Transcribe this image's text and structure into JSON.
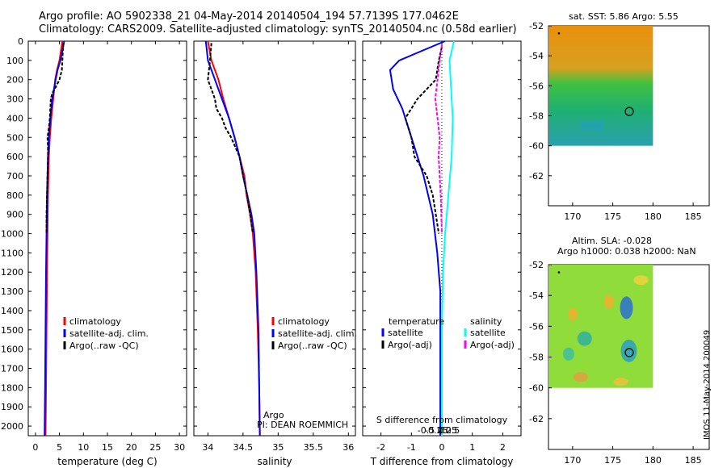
{
  "title_line1": "Argo profile: AO 5902338_21 04-May-2014 20140504_194 57.7139S 177.0462E",
  "title_line2": "Climatology: CARS2009. Satellite-adjusted climatology: synTS_20140504.nc (0.58d earlier)",
  "colors": {
    "clim": "#ff0000",
    "sat": "#0000ff",
    "argo": "#000000",
    "sal_sat": "#00ffff",
    "sal_argo": "#ff00ff"
  },
  "depth_axis": {
    "min": 0,
    "max": 2050,
    "ticks": [
      "0",
      "100",
      "200",
      "300",
      "400",
      "500",
      "600",
      "700",
      "800",
      "900",
      "1000",
      "1100",
      "1200",
      "1300",
      "1400",
      "1500",
      "1600",
      "1700",
      "1800",
      "1900",
      "2000"
    ]
  },
  "chart_data": [
    {
      "type": "line",
      "id": "temperature",
      "xlabel": "temperature (deg C)",
      "xlim": [
        -1.5,
        31.5
      ],
      "xticks": [
        "0",
        "5",
        "10",
        "15",
        "20",
        "25",
        "30"
      ],
      "legend": [
        "climatology",
        "satellite-adj. clim.",
        "Argo(..raw -QC)"
      ],
      "series": [
        {
          "name": "climatology",
          "depth": [
            0,
            50,
            100,
            150,
            200,
            300,
            400,
            500,
            600,
            700,
            800,
            1000,
            1200,
            1500,
            1800,
            2050
          ],
          "x": [
            5.6,
            5.3,
            5.0,
            4.5,
            4.1,
            3.7,
            3.3,
            3.0,
            2.8,
            2.7,
            2.6,
            2.5,
            2.4,
            2.3,
            2.2,
            2.1
          ]
        },
        {
          "name": "satellite-adj. clim.",
          "depth": [
            0,
            50,
            100,
            150,
            200,
            300,
            400,
            500,
            600,
            700,
            800,
            1000,
            1200,
            1500,
            1800,
            2050
          ],
          "x": [
            6.0,
            5.6,
            5.2,
            4.6,
            4.2,
            3.5,
            3.1,
            2.8,
            2.6,
            2.5,
            2.4,
            2.3,
            2.2,
            2.1,
            2.0,
            1.9
          ]
        },
        {
          "name": "Argo",
          "depth": [
            10,
            50,
            100,
            150,
            200,
            240,
            270,
            300,
            350,
            400,
            450,
            500,
            550,
            600,
            700,
            800,
            900,
            1000
          ],
          "x": [
            5.8,
            5.7,
            5.6,
            5.5,
            5.0,
            4.2,
            3.5,
            3.2,
            3.1,
            3.0,
            2.8,
            2.5,
            2.6,
            2.6,
            2.5,
            2.4,
            2.3,
            2.3
          ]
        }
      ]
    },
    {
      "type": "line",
      "id": "salinity",
      "xlabel": "salinity",
      "xlim": [
        33.8,
        36.1
      ],
      "xticks": [
        "34",
        "34.5",
        "35",
        "35.5",
        "36"
      ],
      "legend": [
        "climatology",
        "satellite-adj. clim.",
        "Argo(..raw -QC)"
      ],
      "annotation_title": "Argo",
      "annotation_pi": "PI: DEAN ROEMMICH",
      "series": [
        {
          "name": "climatology",
          "depth": [
            0,
            100,
            200,
            300,
            400,
            500,
            600,
            700,
            800,
            900,
            1000,
            1200,
            1500,
            1800,
            2050
          ],
          "x": [
            34.0,
            34.05,
            34.15,
            34.22,
            34.3,
            34.38,
            34.45,
            34.52,
            34.55,
            34.6,
            34.64,
            34.68,
            34.71,
            34.73,
            34.74
          ]
        },
        {
          "name": "satellite-adj. clim.",
          "depth": [
            0,
            100,
            200,
            300,
            400,
            500,
            600,
            700,
            800,
            900,
            1000,
            1200,
            1500,
            1800,
            2050
          ],
          "x": [
            33.97,
            34.0,
            34.1,
            34.2,
            34.3,
            34.38,
            34.45,
            34.5,
            34.56,
            34.62,
            34.66,
            34.69,
            34.72,
            34.73,
            34.74
          ]
        },
        {
          "name": "Argo",
          "depth": [
            10,
            100,
            200,
            250,
            300,
            350,
            400,
            450,
            500,
            600,
            700,
            800,
            900,
            1000
          ],
          "x": [
            34.05,
            34.03,
            34.0,
            34.05,
            34.1,
            34.12,
            34.2,
            34.25,
            34.33,
            34.45,
            34.5,
            34.56,
            34.6,
            34.64
          ]
        }
      ]
    },
    {
      "type": "line",
      "id": "difference",
      "xlabel_t": "T difference from climatology",
      "xlabel_s": "S difference from climatology",
      "xlim_t": [
        -2.6,
        2.6
      ],
      "xticks_t": [
        "-2",
        "-1",
        "0",
        "1",
        "2"
      ],
      "xticks_s": [
        "-0.5",
        "-0.25",
        "0",
        "0.25",
        "0.5"
      ],
      "legend_headers": [
        "temperature",
        "salinity"
      ],
      "legend": [
        "satellite",
        "Argo(-adj)",
        "satellite",
        "Argo(-adj)"
      ],
      "series": [
        {
          "name": "T satellite",
          "depth": [
            0,
            100,
            150,
            250,
            350,
            500,
            700,
            900,
            1100,
            1300,
            2050
          ],
          "x": [
            0.1,
            -1.4,
            -1.7,
            -1.6,
            -1.3,
            -1.0,
            -0.6,
            -0.3,
            -0.15,
            -0.05,
            -0.05
          ]
        },
        {
          "name": "T Argo(-adj)",
          "depth": [
            30,
            100,
            200,
            300,
            400,
            500,
            600,
            700,
            800,
            900,
            1000
          ],
          "x": [
            0.0,
            -0.1,
            -0.2,
            -0.8,
            -1.2,
            -1.0,
            -0.9,
            -0.5,
            -0.3,
            -0.2,
            -0.1
          ]
        },
        {
          "name": "S satellite",
          "depth": [
            0,
            100,
            200,
            300,
            400,
            600,
            800,
            1000,
            1200,
            1500,
            2050
          ],
          "x": [
            0.55,
            0.35,
            0.4,
            0.45,
            0.5,
            0.45,
            0.3,
            0.15,
            0.05,
            0.0,
            0.0
          ]
        },
        {
          "name": "S Argo(-adj)",
          "depth": [
            20,
            100,
            200,
            300,
            400,
            500,
            600,
            700,
            800,
            1000
          ],
          "x": [
            0.0,
            -0.1,
            -0.2,
            -0.3,
            -0.2,
            -0.1,
            -0.15,
            -0.1,
            -0.05,
            0.0
          ]
        }
      ]
    },
    {
      "type": "heatmap",
      "id": "sst-map",
      "title": "sat. SST: 5.86 Argo: 5.55",
      "xlim": [
        167,
        187
      ],
      "ylim": [
        -64,
        -52
      ],
      "xticks": [
        "170",
        "175",
        "180",
        "185"
      ],
      "yticks": [
        "-52",
        "-54",
        "-56",
        "-58",
        "-60",
        "-62"
      ],
      "argo_position": [
        177.05,
        -57.71
      ]
    },
    {
      "type": "heatmap",
      "id": "sla-map",
      "title": "Altim. SLA: -0.028",
      "subtitle": "Argo h1000: 0.038 h2000: NaN",
      "xlim": [
        167,
        187
      ],
      "ylim": [
        -64,
        -52
      ],
      "xticks": [
        "170",
        "175",
        "180",
        "185"
      ],
      "yticks": [
        "-52",
        "-54",
        "-56",
        "-58",
        "-60",
        "-62"
      ],
      "argo_position": [
        177.05,
        -57.71
      ]
    }
  ],
  "footer_stamp": "IMOS 11-May-2014 200049"
}
